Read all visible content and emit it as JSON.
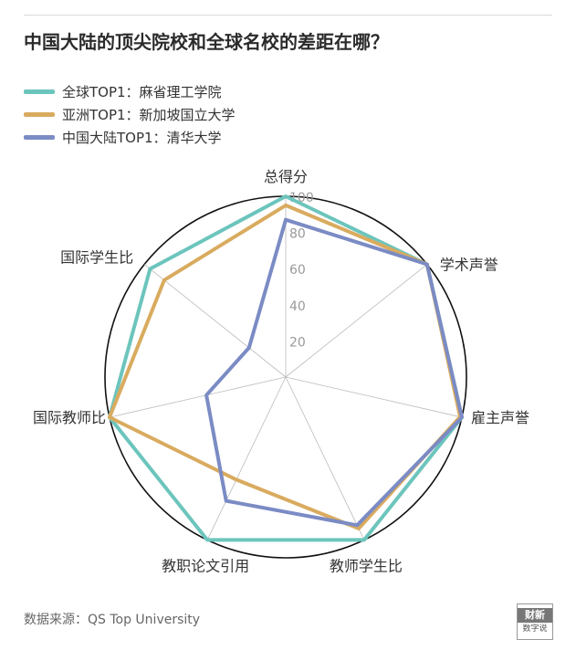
{
  "title": "中国大陆的顶尖院校和全球名校的差距在哪？",
  "source": "数据来源：QS Top University",
  "logo": {
    "top": "财新",
    "bottom": "数字说"
  },
  "colors": {
    "ring": "#111111",
    "spoke": "#bbbbbb",
    "tick": "#999999"
  },
  "chart_data": {
    "type": "radar",
    "axes": [
      "总得分",
      "学术声誉",
      "雇主声誉",
      "教师学生比",
      "教职论文引用",
      "国际教师比",
      "国际学生比"
    ],
    "rlim": [
      0,
      100
    ],
    "ticks": [
      20,
      40,
      60,
      80,
      100
    ],
    "grid": true,
    "legend_position": "top-left",
    "series": [
      {
        "name": "全球TOP1：麻省理工学院",
        "color": "#6cc5bd",
        "values": [
          100,
          100,
          100,
          100,
          100,
          100,
          96
        ]
      },
      {
        "name": "亚洲TOP1：新加坡国立大学",
        "color": "#d9ab5f",
        "values": [
          95,
          100,
          99,
          93,
          63,
          100,
          86
        ]
      },
      {
        "name": "中国大陆TOP1：清华大学",
        "color": "#7b8bc4",
        "values": [
          87,
          100,
          100,
          91,
          76,
          45,
          26
        ]
      }
    ]
  }
}
